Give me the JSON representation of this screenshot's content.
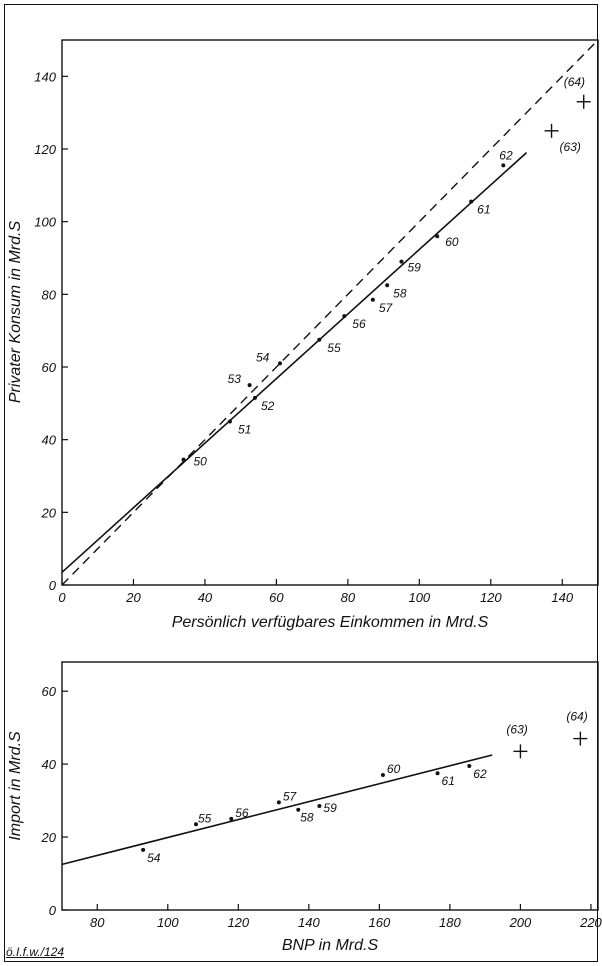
{
  "footer_note": "ö.I.f.w./124",
  "chart_data": [
    {
      "type": "scatter",
      "xlabel": "Persönlich verfügbares Einkommen in Mrd.S",
      "ylabel": "Privater Konsum in Mrd.S",
      "xlim": [
        0,
        150
      ],
      "ylim": [
        0,
        150
      ],
      "xticks": [
        0,
        20,
        40,
        60,
        80,
        100,
        120,
        140
      ],
      "yticks": [
        0,
        20,
        40,
        60,
        80,
        100,
        120,
        140
      ],
      "points": [
        {
          "label": "50",
          "x": 34,
          "y": 34.5
        },
        {
          "label": "51",
          "x": 47,
          "y": 45
        },
        {
          "label": "52",
          "x": 54,
          "y": 51.5
        },
        {
          "label": "53",
          "x": 52.5,
          "y": 55
        },
        {
          "label": "54",
          "x": 61,
          "y": 61
        },
        {
          "label": "55",
          "x": 72,
          "y": 67.5
        },
        {
          "label": "56",
          "x": 79,
          "y": 74
        },
        {
          "label": "57",
          "x": 87,
          "y": 78.5
        },
        {
          "label": "58",
          "x": 91,
          "y": 82.5
        },
        {
          "label": "59",
          "x": 95,
          "y": 89
        },
        {
          "label": "60",
          "x": 105,
          "y": 96
        },
        {
          "label": "61",
          "x": 114.5,
          "y": 105.5
        },
        {
          "label": "62",
          "x": 123.5,
          "y": 115.5
        }
      ],
      "forecast_points": [
        {
          "label": "(63)",
          "x": 137,
          "y": 125
        },
        {
          "label": "(64)",
          "x": 146,
          "y": 133
        }
      ],
      "regression_line": {
        "x": [
          0,
          130
        ],
        "y": [
          3.5,
          119
        ]
      },
      "reference_line": {
        "style": "dashed",
        "x": [
          0,
          150
        ],
        "y": [
          0,
          150
        ]
      }
    },
    {
      "type": "scatter",
      "xlabel": "BNP in Mrd.S",
      "ylabel": "Import in Mrd.S",
      "xlim": [
        70,
        222
      ],
      "ylim": [
        0,
        68
      ],
      "xticks": [
        80,
        100,
        120,
        140,
        160,
        180,
        200,
        220
      ],
      "yticks": [
        0,
        20,
        40,
        60
      ],
      "points": [
        {
          "label": "54",
          "x": 93,
          "y": 16.5
        },
        {
          "label": "55",
          "x": 108,
          "y": 23.5
        },
        {
          "label": "56",
          "x": 118,
          "y": 25
        },
        {
          "label": "57",
          "x": 131.5,
          "y": 29.5
        },
        {
          "label": "58",
          "x": 137,
          "y": 27.5
        },
        {
          "label": "59",
          "x": 143,
          "y": 28.5
        },
        {
          "label": "60",
          "x": 161,
          "y": 37
        },
        {
          "label": "61",
          "x": 176.5,
          "y": 37.5
        },
        {
          "label": "62",
          "x": 185.5,
          "y": 39.5
        }
      ],
      "forecast_points": [
        {
          "label": "(63)",
          "x": 200,
          "y": 43.5
        },
        {
          "label": "(64)",
          "x": 217,
          "y": 47
        }
      ],
      "regression_line": {
        "x": [
          70,
          192
        ],
        "y": [
          12.5,
          42.5
        ]
      }
    }
  ]
}
